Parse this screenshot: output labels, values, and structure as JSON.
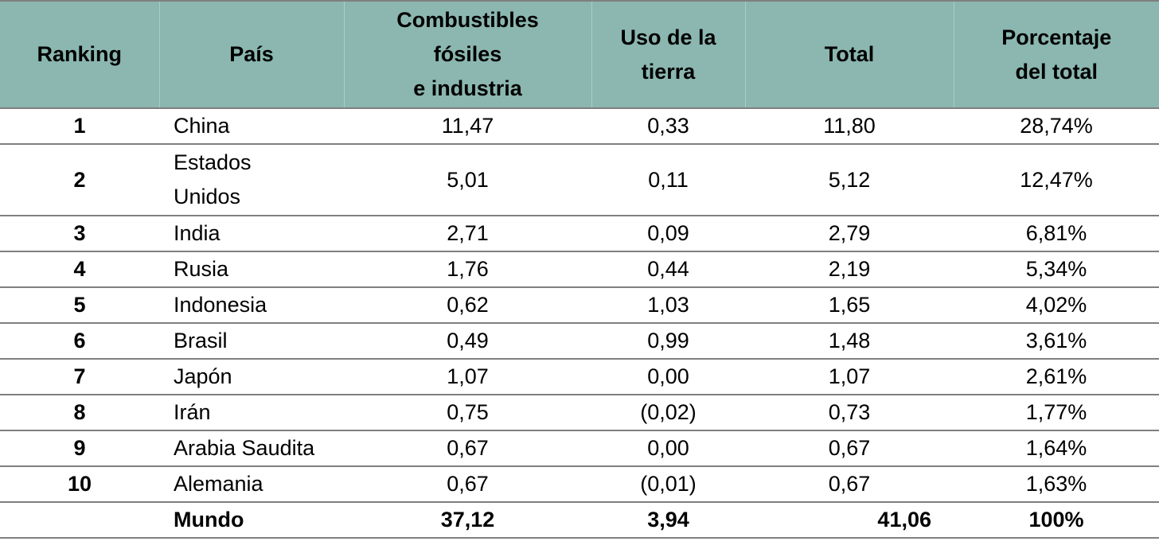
{
  "headers": [
    "Ranking",
    "País",
    "Combustibles fósiles e industria",
    "Uso de la tierra",
    "Total",
    "Porcentaje del total"
  ],
  "header_lines": {
    "fossil": [
      "Combustibles",
      "fósiles",
      "e industria"
    ],
    "land": [
      "Uso de la",
      "tierra"
    ],
    "pct": [
      "Porcentaje",
      "del total"
    ]
  },
  "rows": [
    {
      "rank": "1",
      "country": "China",
      "fossil": "11,47",
      "land": "0,33",
      "total": "11,80",
      "pct": "28,74%"
    },
    {
      "rank": "2",
      "country": "Estados Unidos",
      "country_lines": [
        "Estados",
        "Unidos"
      ],
      "fossil": "5,01",
      "land": "0,11",
      "total": "5,12",
      "pct": "12,47%"
    },
    {
      "rank": "3",
      "country": "India",
      "fossil": "2,71",
      "land": "0,09",
      "total": "2,79",
      "pct": "6,81%"
    },
    {
      "rank": "4",
      "country": "Rusia",
      "fossil": "1,76",
      "land": "0,44",
      "total": "2,19",
      "pct": "5,34%"
    },
    {
      "rank": "5",
      "country": "Indonesia",
      "fossil": "0,62",
      "land": "1,03",
      "total": "1,65",
      "pct": "4,02%"
    },
    {
      "rank": "6",
      "country": "Brasil",
      "fossil": "0,49",
      "land": "0,99",
      "total": "1,48",
      "pct": "3,61%"
    },
    {
      "rank": "7",
      "country": "Japón",
      "fossil": "1,07",
      "land": "0,00",
      "total": "1,07",
      "pct": "2,61%"
    },
    {
      "rank": "8",
      "country": "Irán",
      "fossil": "0,75",
      "land": "(0,02)",
      "total": "0,73",
      "pct": "1,77%"
    },
    {
      "rank": "9",
      "country": "Arabia Saudita",
      "fossil": "0,67",
      "land": "0,00",
      "total": "0,67",
      "pct": "1,64%"
    },
    {
      "rank": "10",
      "country": "Alemania",
      "fossil": "0,67",
      "land": "(0,01)",
      "total": "0,67",
      "pct": "1,63%"
    }
  ],
  "world": {
    "label": "Mundo",
    "fossil": "37,12",
    "land": "3,94",
    "total": "41,06",
    "pct": "100%"
  },
  "colors": {
    "header_bg": "#8bb7b0",
    "rule": "#7f7f7f"
  }
}
